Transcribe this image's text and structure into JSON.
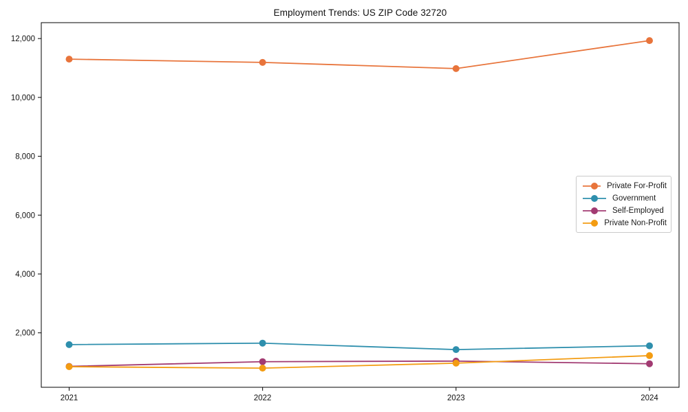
{
  "chart_data": {
    "type": "line",
    "title": "Employment Trends: US ZIP Code 32720",
    "categories": [
      "2021",
      "2022",
      "2023",
      "2024"
    ],
    "series": [
      {
        "name": "Private For-Profit",
        "color": "#e8743b",
        "values": [
          11300,
          11190,
          10980,
          11930
        ]
      },
      {
        "name": "Government",
        "color": "#2e8fad",
        "values": [
          1600,
          1650,
          1430,
          1560
        ]
      },
      {
        "name": "Self-Employed",
        "color": "#a23b72",
        "values": [
          860,
          1020,
          1040,
          950
        ]
      },
      {
        "name": "Private Non-Profit",
        "color": "#f39c12",
        "values": [
          850,
          800,
          970,
          1225
        ]
      }
    ],
    "xlabel": "",
    "ylabel": "",
    "ylim": [
      150,
      12540
    ],
    "yticks": [
      {
        "value": 2000,
        "label": "2,000"
      },
      {
        "value": 4000,
        "label": "4,000"
      },
      {
        "value": 6000,
        "label": "6,000"
      },
      {
        "value": 8000,
        "label": "8,000"
      },
      {
        "value": 10000,
        "label": "10,000"
      },
      {
        "value": 12000,
        "label": "12,000"
      }
    ],
    "grid": false,
    "marker": "circle",
    "legend_position": "center-right",
    "axis_color": "#000000",
    "text_color": "#111111",
    "background_color": "#ffffff"
  }
}
